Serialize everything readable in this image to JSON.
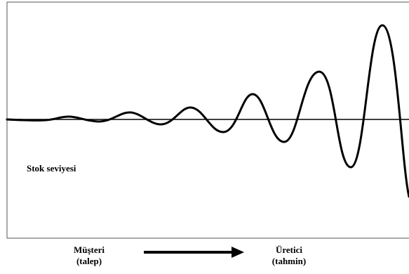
{
  "labels": {
    "stock_level": "Stok seviyesi",
    "customer": "Müşteri",
    "customer_sub": "(talep)",
    "producer": "Üretici",
    "producer_sub": "(tahmin)"
  },
  "colors": {
    "line": "#000000",
    "frame": "#555555",
    "background": "#ffffff"
  },
  "wave": {
    "description_points": [
      [
        0,
        0
      ],
      [
        30,
        1
      ],
      [
        60,
        0
      ],
      [
        95,
        -4
      ],
      [
        130,
        2
      ],
      [
        155,
        2
      ],
      [
        185,
        -10
      ],
      [
        230,
        8
      ],
      [
        272,
        -17
      ],
      [
        318,
        16
      ],
      [
        360,
        -36
      ],
      [
        405,
        32
      ],
      [
        455,
        -66
      ],
      [
        500,
        68
      ],
      [
        545,
        -134
      ],
      [
        583,
        110
      ]
    ]
  }
}
